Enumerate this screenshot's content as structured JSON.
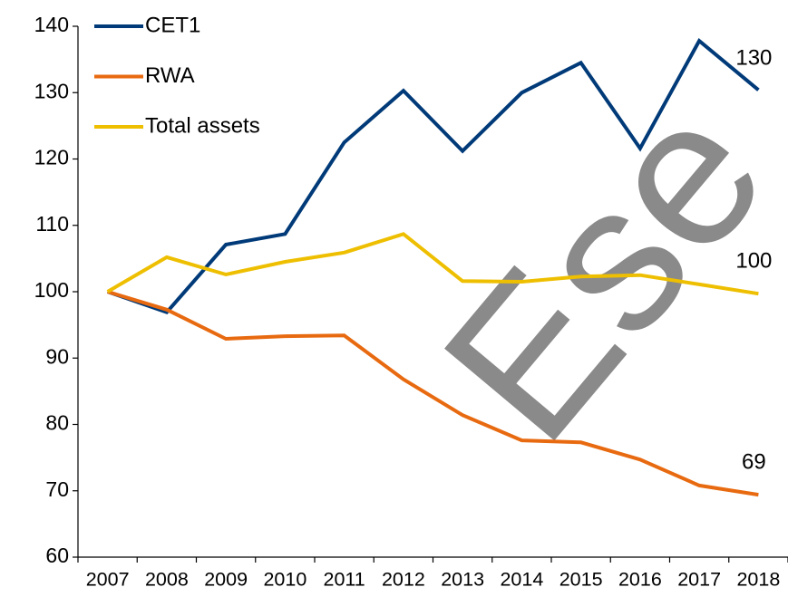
{
  "chart_data": {
    "type": "line",
    "categories": [
      "2007",
      "2008",
      "2009",
      "2010",
      "2011",
      "2012",
      "2013",
      "2014",
      "2015",
      "2016",
      "2017",
      "2018"
    ],
    "series": [
      {
        "name": "CET1",
        "color": "#003a78",
        "values": [
          100,
          96.9,
          107.1,
          108.7,
          122.5,
          130.3,
          121.2,
          130.0,
          134.5,
          121.6,
          137.8,
          130.4
        ],
        "value_labels": [
          null,
          null,
          null,
          null,
          null,
          null,
          null,
          null,
          null,
          null,
          null,
          "130"
        ]
      },
      {
        "name": "RWA",
        "color": "#e86a10",
        "values": [
          100,
          97.3,
          92.9,
          93.3,
          93.4,
          86.8,
          81.4,
          77.6,
          77.3,
          74.7,
          70.8,
          69.4
        ],
        "value_labels": [
          null,
          null,
          null,
          null,
          null,
          null,
          null,
          null,
          null,
          null,
          null,
          "69"
        ]
      },
      {
        "name": "Total assets",
        "color": "#eebf00",
        "values": [
          100,
          105.2,
          102.6,
          104.5,
          105.9,
          108.7,
          101.6,
          101.5,
          102.3,
          102.5,
          101.1,
          99.7
        ],
        "value_labels": [
          null,
          null,
          null,
          null,
          null,
          null,
          null,
          null,
          null,
          null,
          null,
          "100"
        ]
      }
    ],
    "ylim": [
      60,
      140
    ],
    "yticks": [
      60,
      70,
      80,
      90,
      100,
      110,
      120,
      130,
      140
    ],
    "legend": "upper left",
    "grid": false,
    "watermark": "Ese"
  }
}
